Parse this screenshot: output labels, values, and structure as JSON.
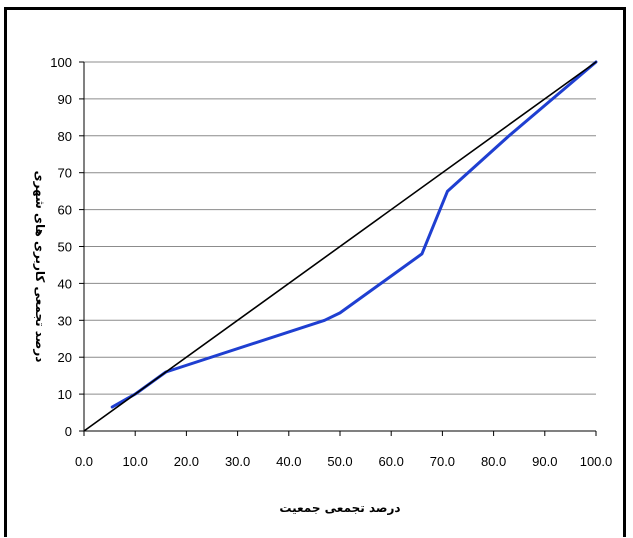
{
  "chart_data": {
    "type": "line",
    "title": "",
    "xlabel": "درصد تجمعی جمعیت",
    "ylabel": "درصد تجمعی کاربری های شهری",
    "xlim": [
      0,
      100
    ],
    "ylim": [
      0,
      100
    ],
    "x_ticks": [
      "0.0",
      "10.0",
      "20.0",
      "30.0",
      "40.0",
      "50.0",
      "60.0",
      "70.0",
      "80.0",
      "90.0",
      "100.0"
    ],
    "y_ticks": [
      "0",
      "10",
      "20",
      "30",
      "40",
      "50",
      "60",
      "70",
      "80",
      "90",
      "100"
    ],
    "grid": "horizontal",
    "series": [
      {
        "color": "#1f3fd1",
        "x": [
          5.5,
          10,
          16,
          47,
          50,
          66,
          71,
          83,
          100
        ],
        "y": [
          6.5,
          10,
          16,
          30,
          32,
          48,
          65,
          80,
          100
        ]
      },
      {
        "color": "#000000",
        "x": [
          0,
          100
        ],
        "y": [
          0,
          100
        ]
      }
    ]
  }
}
